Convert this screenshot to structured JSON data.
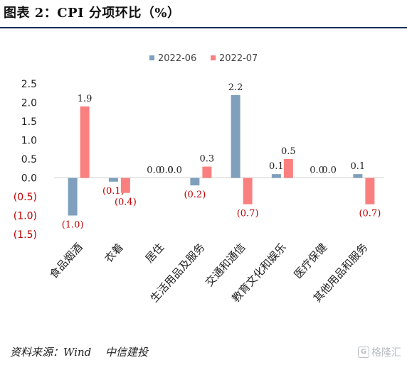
{
  "page": {
    "title": "图表 2：CPI 分项环比（%）",
    "source": "资料来源：Wind　 中信建投",
    "watermark": "格隆汇",
    "watermark_icon": "G"
  },
  "chart_data": {
    "type": "bar",
    "title": "",
    "xlabel": "",
    "ylabel": "",
    "ylim": [
      -1.5,
      2.5
    ],
    "grid": false,
    "legend_position": "top-center",
    "yticks": [
      2.5,
      2.0,
      1.5,
      1.0,
      0.5,
      0.0,
      -0.5,
      -1.0,
      -1.5
    ],
    "ytick_labels": [
      "2.5",
      "2.0",
      "1.5",
      "1.0",
      "0.5",
      "0.0",
      "(0.5)",
      "(1.0)",
      "(1.5)"
    ],
    "categories": [
      "食品烟酒",
      "衣着",
      "居住",
      "生活用品及服务",
      "交通和通信",
      "教育文化和娱乐",
      "医疗保健",
      "其他用品和服务"
    ],
    "series": [
      {
        "name": "2022-06",
        "color": "#7f9fbd",
        "values": [
          -1.0,
          -0.1,
          0.0,
          -0.2,
          2.2,
          0.1,
          0.0,
          0.1
        ],
        "labels": [
          "",
          "(0.1)",
          "0.0",
          "",
          "2.2",
          "0.1",
          "0.0",
          "0.1"
        ]
      },
      {
        "name": "2022-07",
        "color": "#fa8080",
        "values": [
          1.9,
          -0.4,
          0.0,
          0.3,
          -0.7,
          0.5,
          0.0,
          -0.7
        ],
        "labels": [
          "1.9",
          "(0.4)",
          "0.0",
          "0.3",
          "(0.7)",
          "0.5",
          "0.0",
          "(0.7)"
        ]
      }
    ],
    "extra_labels": [
      "(1.0)",
      "(0.2)",
      "0.0"
    ],
    "negative_label_color": "#c00000",
    "positive_label_color": "#222222"
  }
}
